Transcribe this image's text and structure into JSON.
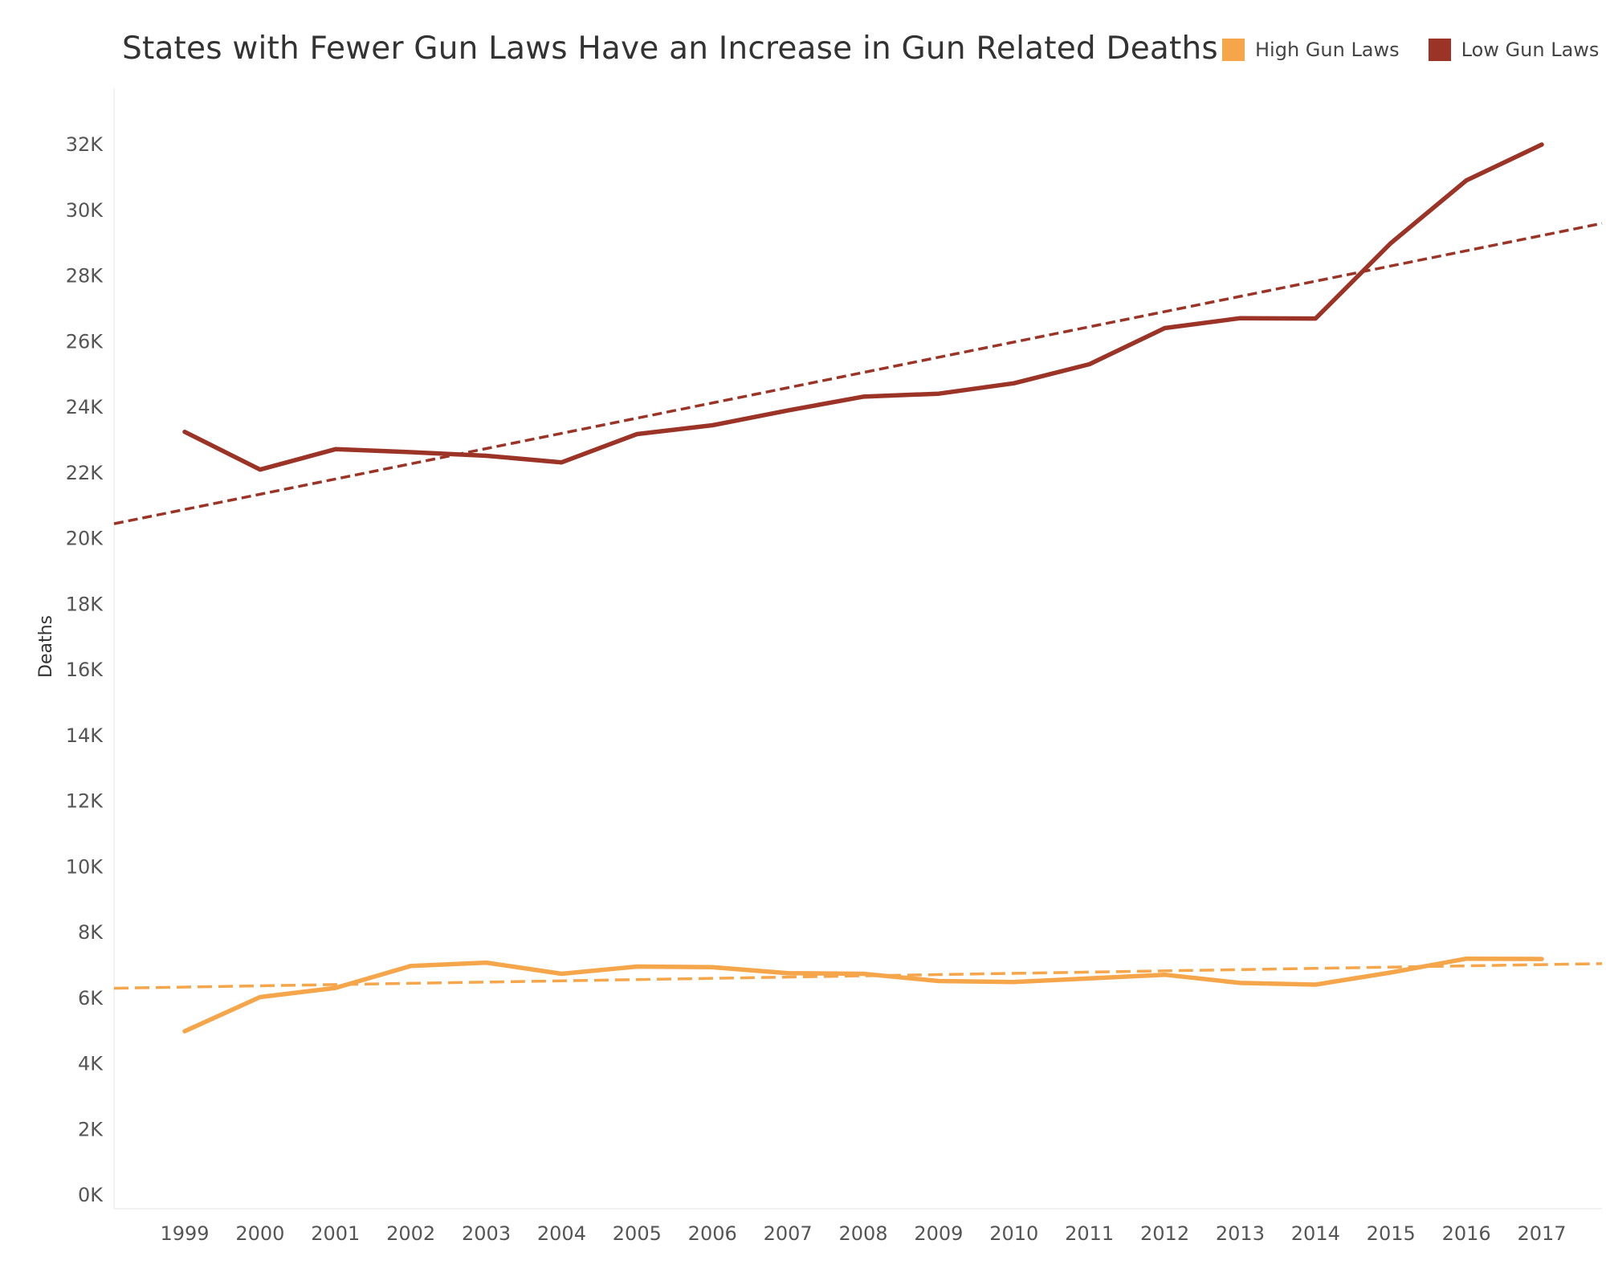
{
  "chart_data": {
    "type": "line",
    "title": "States with Fewer Gun Laws Have an Increase in Gun Related Deaths",
    "xlabel": "",
    "ylabel": "Deaths",
    "categories": [
      "1999",
      "2000",
      "2001",
      "2002",
      "2003",
      "2004",
      "2005",
      "2006",
      "2007",
      "2008",
      "2009",
      "2010",
      "2011",
      "2012",
      "2013",
      "2014",
      "2015",
      "2016",
      "2017"
    ],
    "y_ticks": [
      0,
      2000,
      4000,
      6000,
      8000,
      10000,
      12000,
      14000,
      16000,
      18000,
      20000,
      22000,
      24000,
      26000,
      28000,
      30000,
      32000
    ],
    "y_tick_labels": [
      "0K",
      "2K",
      "4K",
      "6K",
      "8K",
      "10K",
      "12K",
      "14K",
      "16K",
      "18K",
      "20K",
      "22K",
      "24K",
      "26K",
      "28K",
      "30K",
      "32K"
    ],
    "ylim": [
      0,
      33000
    ],
    "grid": false,
    "legend_position": "top-right",
    "series": [
      {
        "name": "High Gun Laws",
        "color": "#F5A54A",
        "values": [
          4990,
          6030,
          6310,
          6980,
          7080,
          6740,
          6960,
          6940,
          6760,
          6740,
          6520,
          6490,
          6600,
          6710,
          6460,
          6410,
          6780,
          7200,
          7190
        ],
        "trend": {
          "style": "dashed",
          "start": 6300,
          "end": 7050
        }
      },
      {
        "name": "Low Gun Laws",
        "color": "#9B3426",
        "values": [
          23250,
          22100,
          22720,
          22630,
          22520,
          22320,
          23180,
          23450,
          23900,
          24320,
          24410,
          24730,
          25310,
          26410,
          26710,
          26700,
          29000,
          30910,
          32000
        ],
        "trend": {
          "style": "dashed",
          "start": 20450,
          "end": 29600
        }
      }
    ]
  }
}
